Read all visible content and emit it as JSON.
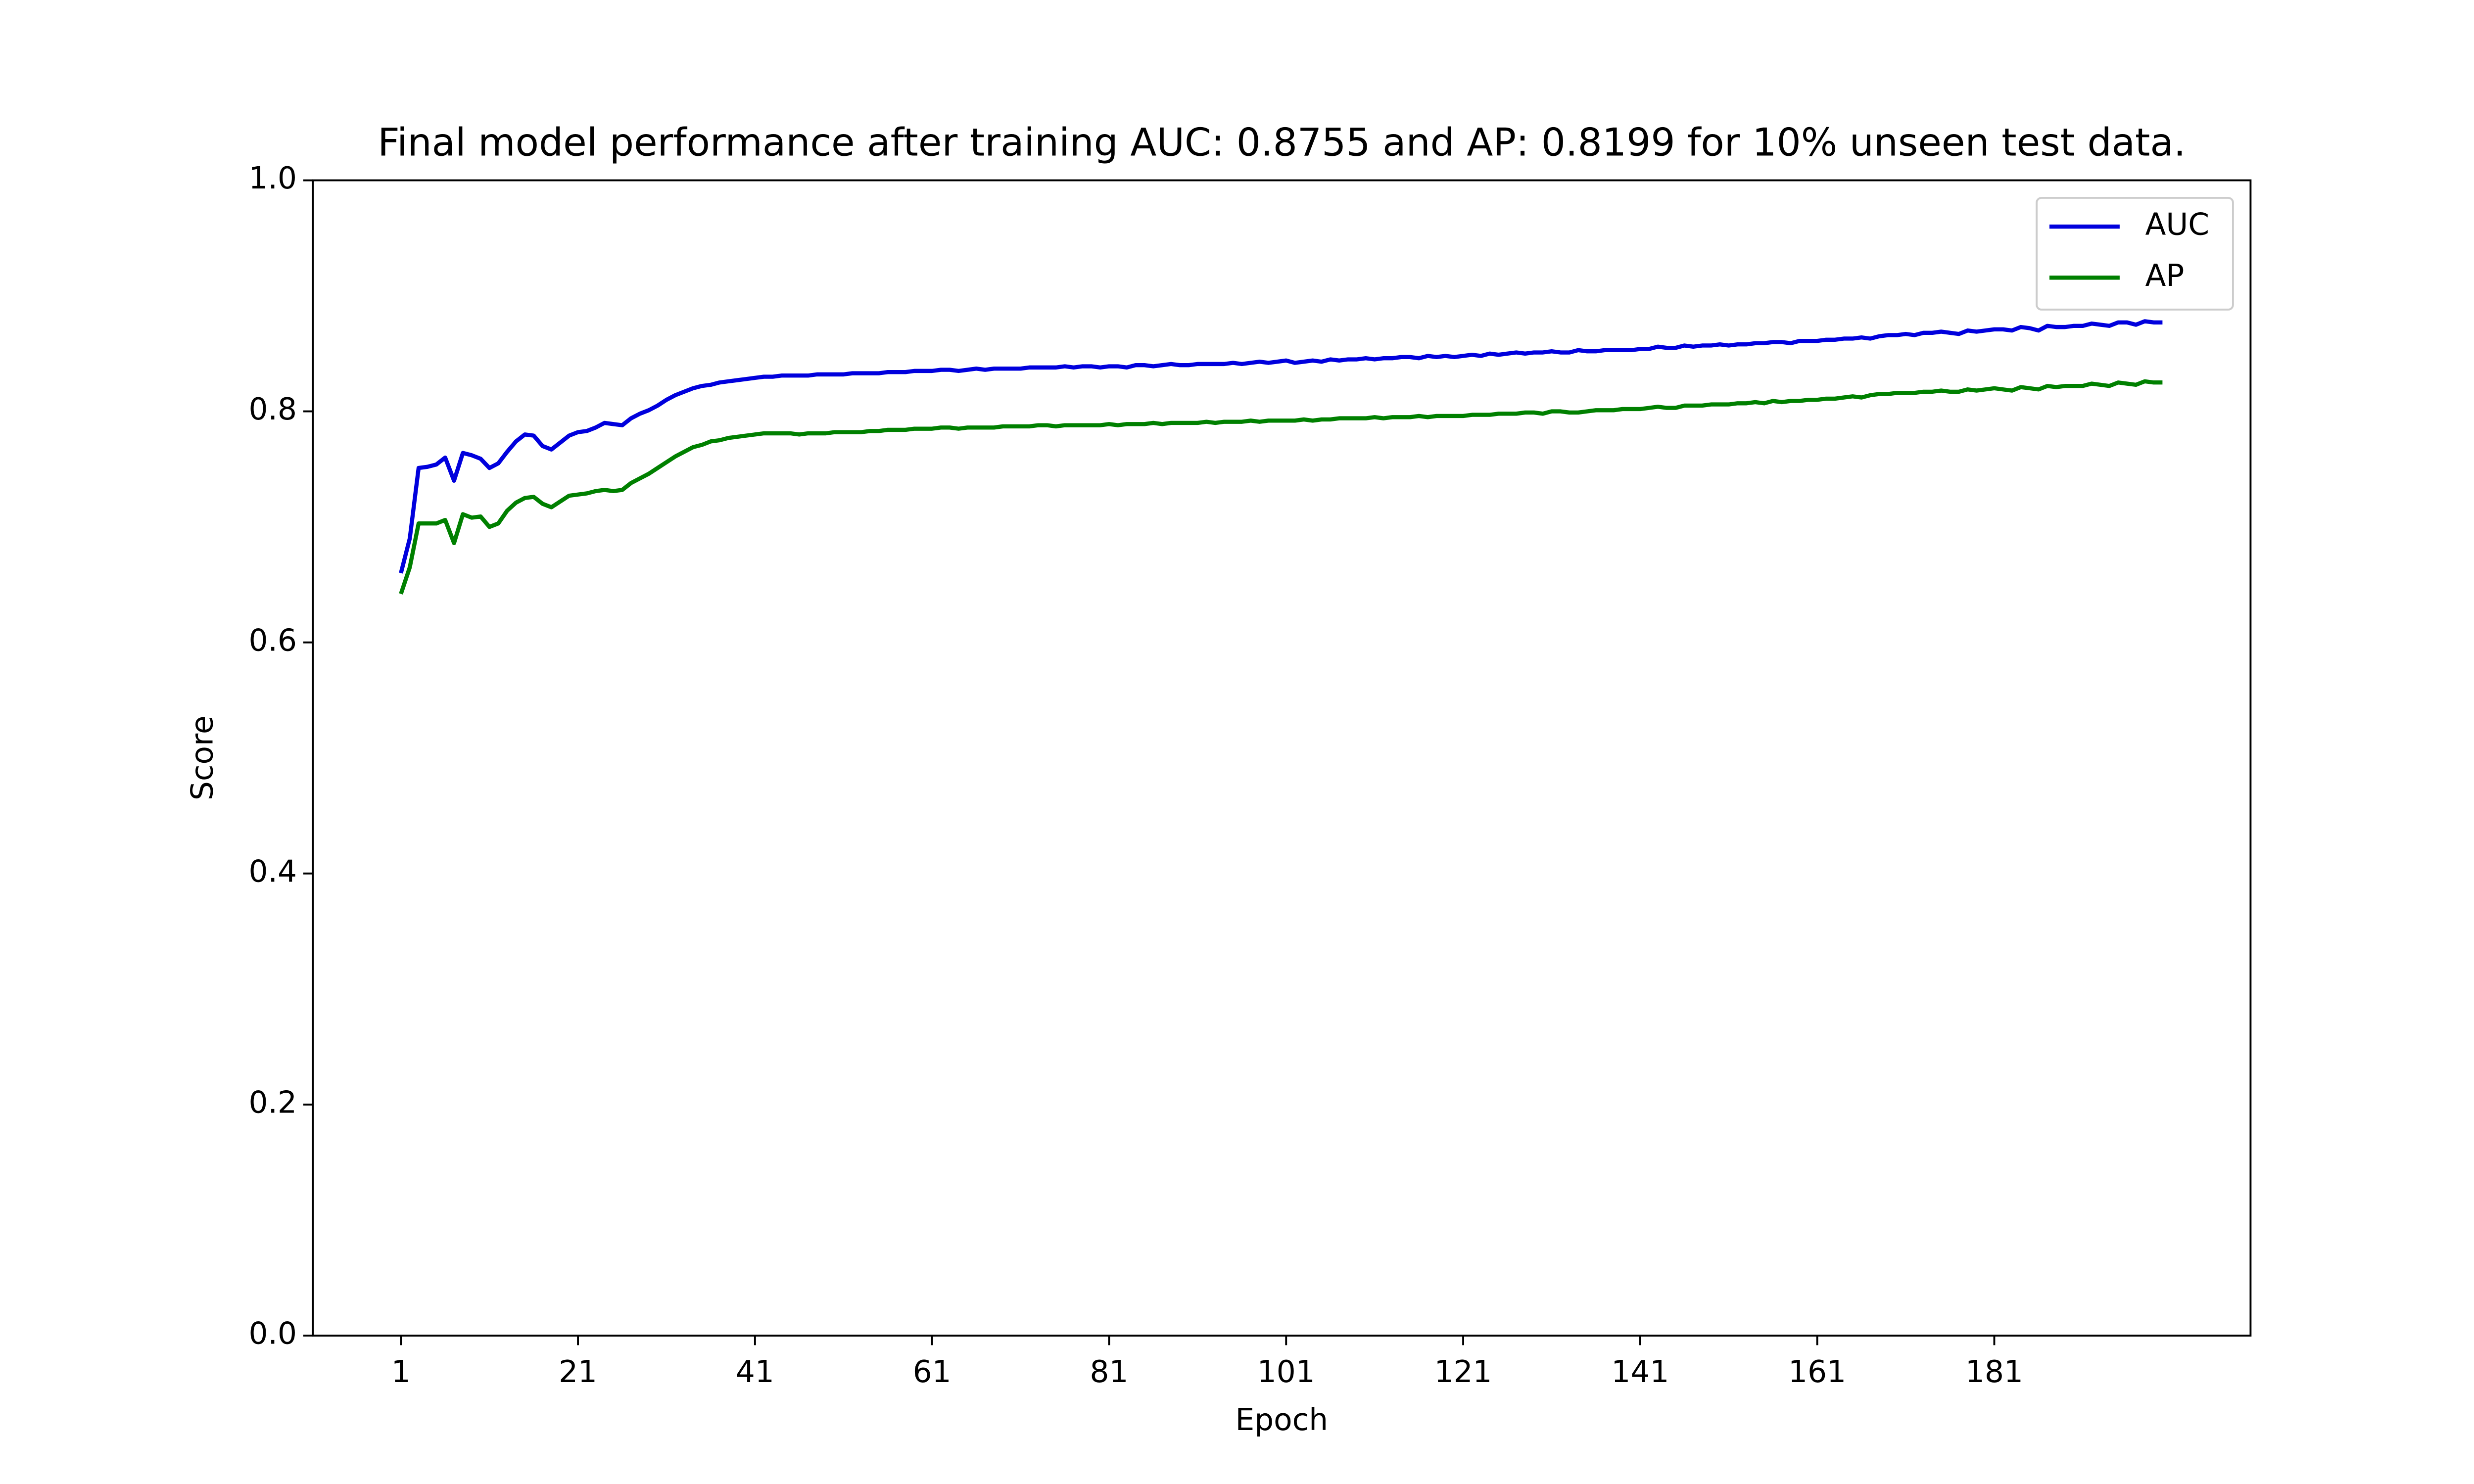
{
  "chart_data": {
    "type": "line",
    "title": "Final model performance after training AUC: 0.8755 and AP: 0.8199 for 10% unseen test data.",
    "xlabel": "Epoch",
    "ylabel": "Score",
    "x": [
      1,
      2,
      3,
      4,
      5,
      6,
      7,
      8,
      9,
      10,
      11,
      12,
      13,
      14,
      15,
      16,
      17,
      18,
      19,
      20,
      21,
      22,
      23,
      24,
      25,
      26,
      27,
      28,
      29,
      30,
      31,
      32,
      33,
      34,
      35,
      36,
      37,
      38,
      39,
      40,
      41,
      42,
      43,
      44,
      45,
      46,
      47,
      48,
      49,
      50,
      51,
      52,
      53,
      54,
      55,
      56,
      57,
      58,
      59,
      60,
      61,
      62,
      63,
      64,
      65,
      66,
      67,
      68,
      69,
      70,
      71,
      72,
      73,
      74,
      75,
      76,
      77,
      78,
      79,
      80,
      81,
      82,
      83,
      84,
      85,
      86,
      87,
      88,
      89,
      90,
      91,
      92,
      93,
      94,
      95,
      96,
      97,
      98,
      99,
      100,
      101,
      102,
      103,
      104,
      105,
      106,
      107,
      108,
      109,
      110,
      111,
      112,
      113,
      114,
      115,
      116,
      117,
      118,
      119,
      120,
      121,
      122,
      123,
      124,
      125,
      126,
      127,
      128,
      129,
      130,
      131,
      132,
      133,
      134,
      135,
      136,
      137,
      138,
      139,
      140,
      141,
      142,
      143,
      144,
      145,
      146,
      147,
      148,
      149,
      150,
      151,
      152,
      153,
      154,
      155,
      156,
      157,
      158,
      159,
      160,
      161,
      162,
      163,
      164,
      165,
      166,
      167,
      168,
      169,
      170,
      171,
      172,
      173,
      174,
      175,
      176,
      177,
      178,
      179,
      180,
      181,
      182,
      183,
      184,
      185,
      186,
      187,
      188,
      189,
      190,
      191,
      192,
      193,
      194,
      195,
      196,
      197,
      198,
      199,
      200
    ],
    "series": [
      {
        "name": "AUC",
        "color": "#0000dd",
        "values": [
          0.66,
          0.69,
          0.751,
          0.752,
          0.754,
          0.76,
          0.74,
          0.764,
          0.762,
          0.759,
          0.751,
          0.755,
          0.765,
          0.774,
          0.78,
          0.779,
          0.77,
          0.767,
          0.773,
          0.779,
          0.782,
          0.783,
          0.786,
          0.79,
          0.789,
          0.788,
          0.794,
          0.798,
          0.801,
          0.805,
          0.81,
          0.814,
          0.817,
          0.82,
          0.822,
          0.823,
          0.825,
          0.826,
          0.827,
          0.828,
          0.829,
          0.83,
          0.83,
          0.831,
          0.831,
          0.831,
          0.831,
          0.832,
          0.832,
          0.832,
          0.832,
          0.833,
          0.833,
          0.833,
          0.833,
          0.834,
          0.834,
          0.834,
          0.835,
          0.835,
          0.835,
          0.836,
          0.836,
          0.835,
          0.836,
          0.837,
          0.836,
          0.837,
          0.837,
          0.837,
          0.837,
          0.838,
          0.838,
          0.838,
          0.838,
          0.839,
          0.838,
          0.839,
          0.839,
          0.838,
          0.839,
          0.839,
          0.838,
          0.84,
          0.84,
          0.839,
          0.84,
          0.841,
          0.84,
          0.84,
          0.841,
          0.841,
          0.841,
          0.841,
          0.842,
          0.841,
          0.842,
          0.843,
          0.842,
          0.843,
          0.844,
          0.842,
          0.843,
          0.844,
          0.843,
          0.845,
          0.844,
          0.845,
          0.845,
          0.846,
          0.845,
          0.846,
          0.846,
          0.847,
          0.847,
          0.846,
          0.848,
          0.847,
          0.848,
          0.847,
          0.848,
          0.849,
          0.848,
          0.85,
          0.849,
          0.85,
          0.851,
          0.85,
          0.851,
          0.851,
          0.852,
          0.851,
          0.851,
          0.853,
          0.852,
          0.852,
          0.853,
          0.853,
          0.853,
          0.853,
          0.854,
          0.854,
          0.856,
          0.855,
          0.855,
          0.857,
          0.856,
          0.857,
          0.857,
          0.858,
          0.857,
          0.858,
          0.858,
          0.859,
          0.859,
          0.86,
          0.86,
          0.859,
          0.861,
          0.861,
          0.861,
          0.862,
          0.862,
          0.863,
          0.863,
          0.864,
          0.863,
          0.865,
          0.866,
          0.866,
          0.867,
          0.866,
          0.868,
          0.868,
          0.869,
          0.868,
          0.867,
          0.87,
          0.869,
          0.87,
          0.871,
          0.871,
          0.87,
          0.873,
          0.872,
          0.87,
          0.874,
          0.873,
          0.873,
          0.874,
          0.874,
          0.876,
          0.875,
          0.874,
          0.877,
          0.877,
          0.875,
          0.878,
          0.877,
          0.877
        ]
      },
      {
        "name": "AP",
        "color": "#008000",
        "values": [
          0.642,
          0.665,
          0.703,
          0.703,
          0.703,
          0.706,
          0.686,
          0.711,
          0.708,
          0.709,
          0.7,
          0.703,
          0.714,
          0.721,
          0.725,
          0.726,
          0.72,
          0.717,
          0.722,
          0.727,
          0.728,
          0.729,
          0.731,
          0.732,
          0.731,
          0.732,
          0.738,
          0.742,
          0.746,
          0.751,
          0.756,
          0.761,
          0.765,
          0.769,
          0.771,
          0.774,
          0.775,
          0.777,
          0.778,
          0.779,
          0.78,
          0.781,
          0.781,
          0.781,
          0.781,
          0.78,
          0.781,
          0.781,
          0.781,
          0.782,
          0.782,
          0.782,
          0.782,
          0.783,
          0.783,
          0.784,
          0.784,
          0.784,
          0.785,
          0.785,
          0.785,
          0.786,
          0.786,
          0.785,
          0.786,
          0.786,
          0.786,
          0.786,
          0.787,
          0.787,
          0.787,
          0.787,
          0.788,
          0.788,
          0.787,
          0.788,
          0.788,
          0.788,
          0.788,
          0.788,
          0.789,
          0.788,
          0.789,
          0.789,
          0.789,
          0.79,
          0.789,
          0.79,
          0.79,
          0.79,
          0.79,
          0.791,
          0.79,
          0.791,
          0.791,
          0.791,
          0.792,
          0.791,
          0.792,
          0.792,
          0.792,
          0.792,
          0.793,
          0.792,
          0.793,
          0.793,
          0.794,
          0.794,
          0.794,
          0.794,
          0.795,
          0.794,
          0.795,
          0.795,
          0.795,
          0.796,
          0.795,
          0.796,
          0.796,
          0.796,
          0.796,
          0.797,
          0.797,
          0.797,
          0.798,
          0.798,
          0.798,
          0.799,
          0.799,
          0.798,
          0.8,
          0.8,
          0.799,
          0.799,
          0.8,
          0.801,
          0.801,
          0.801,
          0.802,
          0.802,
          0.802,
          0.803,
          0.804,
          0.803,
          0.803,
          0.805,
          0.805,
          0.805,
          0.806,
          0.806,
          0.806,
          0.807,
          0.807,
          0.808,
          0.807,
          0.809,
          0.808,
          0.809,
          0.809,
          0.81,
          0.81,
          0.811,
          0.811,
          0.812,
          0.813,
          0.812,
          0.814,
          0.815,
          0.815,
          0.816,
          0.816,
          0.816,
          0.817,
          0.817,
          0.818,
          0.817,
          0.817,
          0.819,
          0.818,
          0.819,
          0.82,
          0.819,
          0.818,
          0.821,
          0.82,
          0.819,
          0.822,
          0.821,
          0.822,
          0.822,
          0.822,
          0.824,
          0.823,
          0.822,
          0.825,
          0.824,
          0.823,
          0.826,
          0.825,
          0.825
        ]
      }
    ],
    "xlim": [
      -8.95,
      209.95
    ],
    "xticks": [
      1,
      21,
      41,
      61,
      81,
      101,
      121,
      141,
      161,
      181
    ],
    "ylim": [
      0,
      1
    ],
    "yticks": [
      {
        "value": 0,
        "label": "0.0"
      },
      0.2,
      0.4,
      0.6,
      0.8,
      {
        "value": 1,
        "label": "1.0"
      }
    ],
    "legend": "upper right"
  }
}
